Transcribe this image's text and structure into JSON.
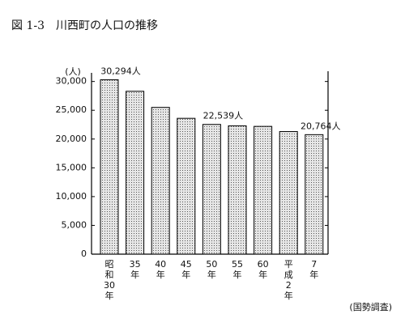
{
  "chart_data": {
    "type": "bar",
    "title": "図 1-3　川西町の人口の推移",
    "y_label": "(人)",
    "source": "(国勢調査)",
    "categories": [
      "昭和30年",
      "35年",
      "40年",
      "45年",
      "50年",
      "55年",
      "60年",
      "平成2年",
      "7年"
    ],
    "values": [
      30294,
      28300,
      25500,
      23600,
      22539,
      22300,
      22200,
      21300,
      20764
    ],
    "value_labels": [
      "30,294人",
      null,
      null,
      null,
      "22,539人",
      null,
      null,
      null,
      "20,764人"
    ],
    "color": "#c8c8c8",
    "ylim": [
      0,
      31500
    ],
    "yticks": [
      0,
      {
        "value": 5000,
        "label": "5,000"
      },
      {
        "value": 10000,
        "label": "10,000"
      },
      {
        "value": 15000,
        "label": "15,000"
      },
      {
        "value": 20000,
        "label": "20,000"
      },
      {
        "value": 25000,
        "label": "25,000"
      },
      {
        "value": 30000,
        "label": "30,000"
      }
    ]
  }
}
